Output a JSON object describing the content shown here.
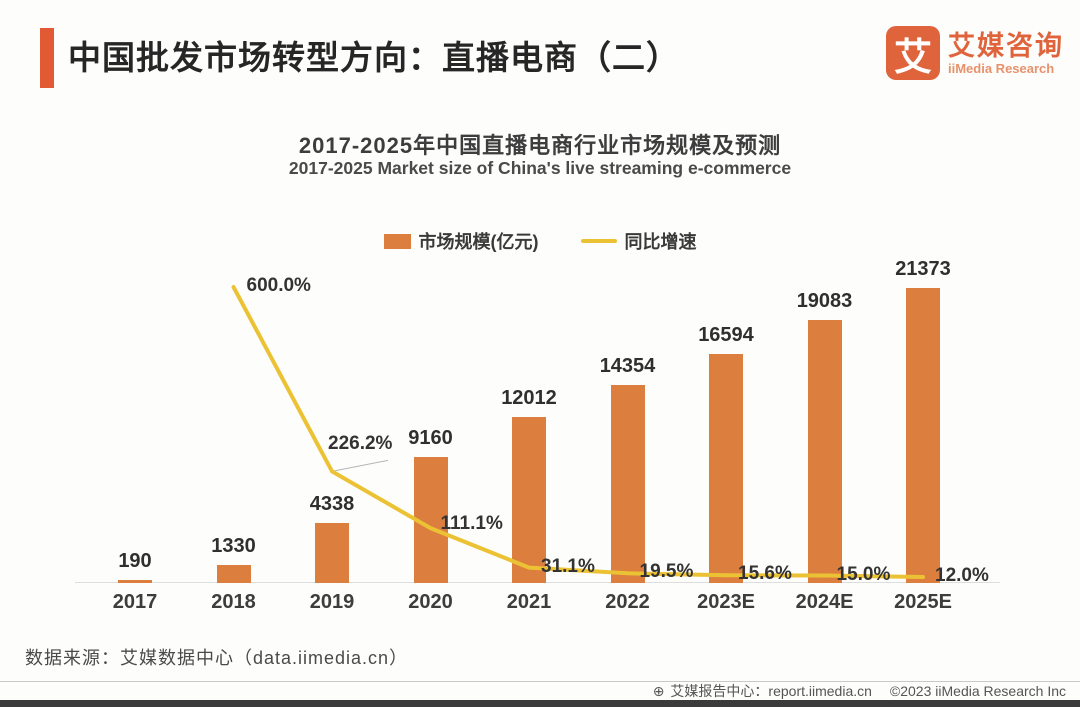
{
  "header": {
    "title": "中国批发市场转型方向：直播电商（二）",
    "logo": {
      "glyph": "艾",
      "brand_cn": "艾媒咨询",
      "brand_en": "iiMedia Research"
    }
  },
  "chart": {
    "title_cn": "2017-2025年中国直播电商行业市场规模及预测",
    "title_en": "2017-2025 Market size of China's live streaming e-commerce",
    "legend": [
      {
        "label": "市场规模(亿元)",
        "type": "bar"
      },
      {
        "label": "同比增速",
        "type": "line"
      }
    ]
  },
  "chart_data": {
    "type": "bar",
    "title": "2017-2025年中国直播电商行业市场规模及预测",
    "subtitle": "2017-2025 Market size of China's live streaming e-commerce",
    "categories": [
      "2017",
      "2018",
      "2019",
      "2020",
      "2021",
      "2022",
      "2023E",
      "2024E",
      "2025E"
    ],
    "series": [
      {
        "name": "市场规模(亿元)",
        "type": "bar",
        "color": "#DC7E3E",
        "values": [
          190,
          1330,
          4338,
          9160,
          12012,
          14354,
          16594,
          19083,
          21373
        ]
      },
      {
        "name": "同比增速",
        "type": "line",
        "color": "#ECC235",
        "unit": "%",
        "values": [
          null,
          600.0,
          226.2,
          111.1,
          31.1,
          19.5,
          15.6,
          15.0,
          12.0
        ],
        "labels": [
          null,
          "600.0%",
          "226.2%",
          "111.1%",
          "31.1%",
          "19.5%",
          "15.6%",
          "15.0%",
          "12.0%"
        ],
        "axis_range": [
          0,
          700
        ]
      }
    ],
    "xlabel": "",
    "ylabel": "",
    "grid": false,
    "legend_position": "top"
  },
  "footer": {
    "source": "数据来源：艾媒数据中心（data.iimedia.cn）",
    "report_center": "艾媒报告中心：report.iimedia.cn",
    "copyright": "©2023  iiMedia Research Inc"
  },
  "colors": {
    "accent": "#E25A33",
    "bar": "#DC7E3E",
    "line": "#ECC235",
    "brand": "#E0643B",
    "bottom_strip": "#3B3B3B"
  }
}
